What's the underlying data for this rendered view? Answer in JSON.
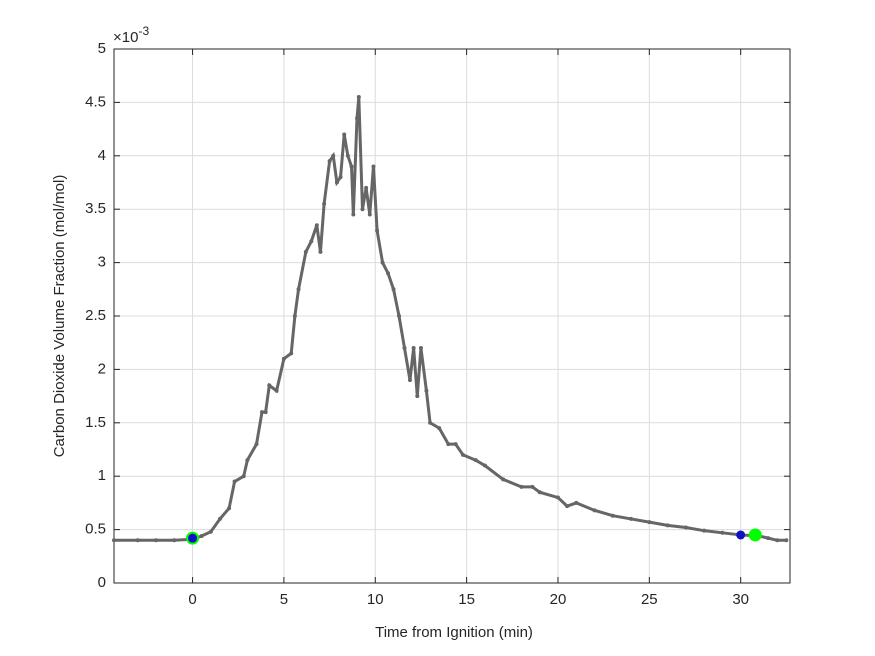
{
  "chart_data": {
    "type": "line",
    "x_label": "Time from Ignition (min)",
    "y_label": "Carbon Dioxide Volume Fraction (mol/mol)",
    "y_multiplier": {
      "base": "×10",
      "exponent": "-3"
    },
    "xlim": [
      -4.3,
      32.7
    ],
    "ylim": [
      0,
      5
    ],
    "xticks": [
      0,
      5,
      10,
      15,
      20,
      25,
      30
    ],
    "yticks": [
      0,
      0.5,
      1,
      1.5,
      2,
      2.5,
      3,
      3.5,
      4,
      4.5,
      5
    ],
    "grid": true,
    "series": [
      {
        "style": "line",
        "color": "#666666",
        "x": [
          -4.3,
          -3,
          -2,
          -1,
          0,
          0.5,
          1,
          1.5,
          2,
          2.3,
          2.8,
          3,
          3.5,
          3.8,
          4,
          4.2,
          4.6,
          5,
          5.4,
          5.6,
          5.8,
          6.2,
          6.5,
          6.8,
          7,
          7.2,
          7.5,
          7.7,
          7.9,
          8.1,
          8.3,
          8.5,
          8.7,
          8.8,
          9.0,
          9.1,
          9.3,
          9.5,
          9.7,
          9.9,
          10.1,
          10.4,
          10.7,
          11,
          11.3,
          11.6,
          11.9,
          12.1,
          12.3,
          12.5,
          12.8,
          13,
          13.5,
          14,
          14.4,
          14.8,
          15.5,
          16,
          17,
          18,
          18.6,
          19,
          20,
          20.5,
          21,
          22,
          23,
          24,
          25,
          26,
          27,
          28,
          29,
          30,
          31,
          31.5,
          32,
          32.5
        ],
        "values": [
          0.4,
          0.4,
          0.4,
          0.4,
          0.41,
          0.44,
          0.48,
          0.6,
          0.7,
          0.95,
          1.0,
          1.15,
          1.3,
          1.6,
          1.6,
          1.85,
          1.8,
          2.1,
          2.15,
          2.5,
          2.75,
          3.1,
          3.2,
          3.35,
          3.1,
          3.55,
          3.95,
          4.0,
          3.75,
          3.8,
          4.2,
          4.0,
          3.9,
          3.45,
          4.35,
          4.55,
          3.5,
          3.7,
          3.45,
          3.9,
          3.3,
          3.0,
          2.9,
          2.75,
          2.5,
          2.2,
          1.9,
          2.2,
          1.75,
          2.2,
          1.8,
          1.5,
          1.45,
          1.3,
          1.3,
          1.2,
          1.15,
          1.1,
          0.97,
          0.9,
          0.9,
          0.85,
          0.8,
          0.72,
          0.75,
          0.68,
          0.63,
          0.6,
          0.57,
          0.54,
          0.52,
          0.49,
          0.47,
          0.45,
          0.44,
          0.42,
          0.4,
          0.4
        ]
      },
      {
        "style": "marker",
        "color": "#00ff00",
        "size": 6.5,
        "x": [
          0,
          30.8
        ],
        "values": [
          0.42,
          0.45
        ]
      },
      {
        "style": "marker",
        "color": "#1010c8",
        "size": 4.5,
        "x": [
          0,
          30
        ],
        "values": [
          0.42,
          0.45
        ]
      }
    ]
  }
}
